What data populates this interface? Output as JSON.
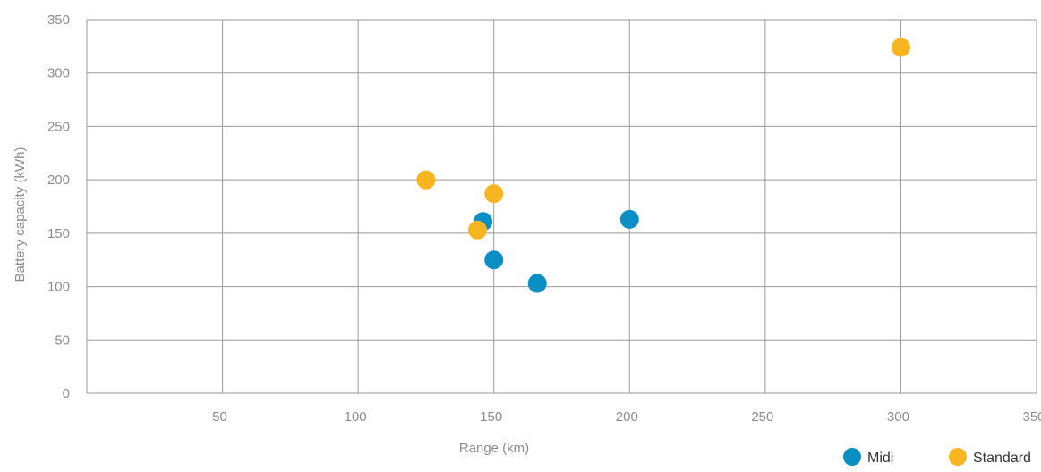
{
  "chart_data": {
    "type": "scatter",
    "title": "",
    "xlabel": "Range (km)",
    "ylabel": "Battery capacity (kWh)",
    "xlim": [
      0,
      350
    ],
    "ylim": [
      0,
      350
    ],
    "x_ticks": [
      50,
      100,
      150,
      200,
      250,
      300,
      350
    ],
    "y_ticks": [
      0,
      50,
      100,
      150,
      200,
      250,
      300,
      350
    ],
    "grid": true,
    "legend_position": "bottom-right",
    "series": [
      {
        "name": "Midi",
        "color": "#0a8fc4",
        "points": [
          {
            "x": 146,
            "y": 161
          },
          {
            "x": 150,
            "y": 125
          },
          {
            "x": 166,
            "y": 103
          },
          {
            "x": 200,
            "y": 163
          }
        ]
      },
      {
        "name": "Standard",
        "color": "#f8b522",
        "points": [
          {
            "x": 125,
            "y": 200
          },
          {
            "x": 150,
            "y": 187
          },
          {
            "x": 144,
            "y": 153
          },
          {
            "x": 300,
            "y": 324
          }
        ]
      }
    ]
  }
}
